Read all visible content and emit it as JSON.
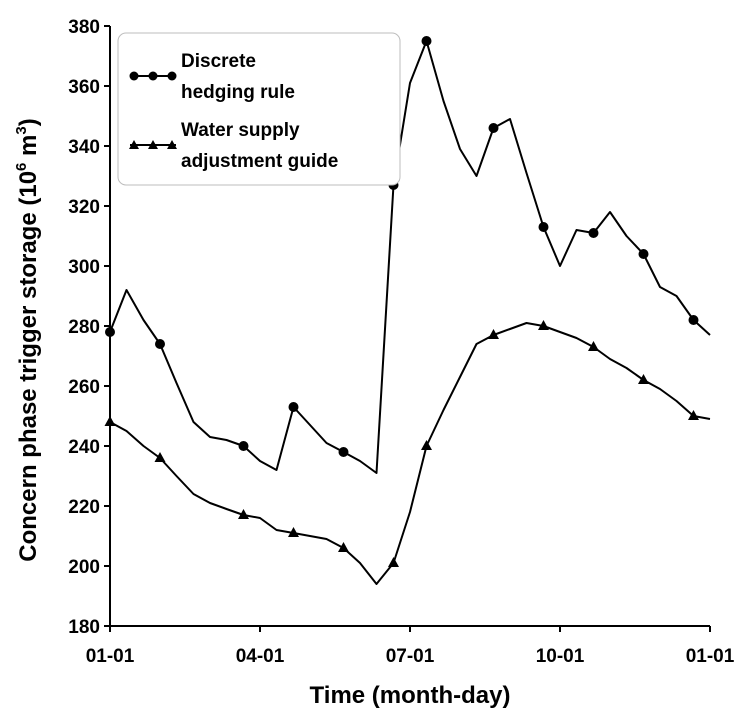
{
  "chart_data": {
    "type": "line",
    "xlabel": "Time (month-day)",
    "ylabel_main": "Concern phase trigger storage (10",
    "ylabel_sup": "6",
    "ylabel_unit": " m",
    "ylabel_sup2": "3",
    "ylabel_close": ")",
    "xlim": [
      0,
      12
    ],
    "ylim": [
      180,
      380
    ],
    "x_ticks": [
      {
        "value": 0,
        "label": "01-01"
      },
      {
        "value": 3,
        "label": "04-01"
      },
      {
        "value": 6,
        "label": "07-01"
      },
      {
        "value": 9,
        "label": "10-01"
      },
      {
        "value": 12,
        "label": "01-01"
      }
    ],
    "y_ticks": [
      180,
      200,
      220,
      240,
      260,
      280,
      300,
      320,
      340,
      360,
      380
    ],
    "grid": false,
    "legend": {
      "position": "top-left",
      "entries": [
        {
          "line1": "Discrete",
          "line2": "hedging rule",
          "marker": "circle"
        },
        {
          "line1": "Water supply",
          "line2": "adjustment guide",
          "marker": "triangle"
        }
      ]
    },
    "series": [
      {
        "name": "Discrete hedging rule",
        "marker": "circle",
        "x": [
          0,
          0.33,
          0.67,
          1,
          1.33,
          1.67,
          2,
          2.33,
          2.67,
          3,
          3.33,
          3.67,
          4,
          4.33,
          4.67,
          5,
          5.33,
          5.67,
          6,
          6.33,
          6.67,
          7,
          7.33,
          7.67,
          8,
          8.33,
          8.67,
          9,
          9.33,
          9.67,
          10,
          10.33,
          10.67,
          11,
          11.33,
          11.67,
          12
        ],
        "y": [
          278,
          292,
          282,
          274,
          261,
          248,
          243,
          242,
          240,
          235,
          232,
          253,
          247,
          241,
          238,
          235,
          231,
          327,
          361,
          375,
          355,
          339,
          330,
          346,
          349,
          331,
          313,
          300,
          312,
          311,
          318,
          310,
          304,
          293,
          290,
          282,
          277
        ],
        "markers_at": [
          0,
          3,
          8,
          11,
          14,
          17,
          19,
          23,
          26,
          29,
          32,
          35
        ]
      },
      {
        "name": "Water supply adjustment guide",
        "marker": "triangle",
        "x": [
          0,
          0.33,
          0.67,
          1,
          1.33,
          1.67,
          2,
          2.33,
          2.67,
          3,
          3.33,
          3.67,
          4,
          4.33,
          4.67,
          5,
          5.33,
          5.67,
          6,
          6.33,
          6.67,
          7,
          7.33,
          7.67,
          8,
          8.33,
          8.67,
          9,
          9.33,
          9.67,
          10,
          10.33,
          10.67,
          11,
          11.33,
          11.67,
          12
        ],
        "y": [
          248,
          245,
          240,
          236,
          230,
          224,
          221,
          219,
          217,
          216,
          212,
          211,
          210,
          209,
          206,
          201,
          194,
          201,
          218,
          240,
          252,
          263,
          274,
          277,
          279,
          281,
          280,
          278,
          276,
          273,
          269,
          266,
          262,
          259,
          255,
          250,
          249
        ],
        "markers_at": [
          0,
          3,
          8,
          11,
          14,
          17,
          19,
          23,
          26,
          29,
          32,
          35
        ]
      }
    ]
  }
}
